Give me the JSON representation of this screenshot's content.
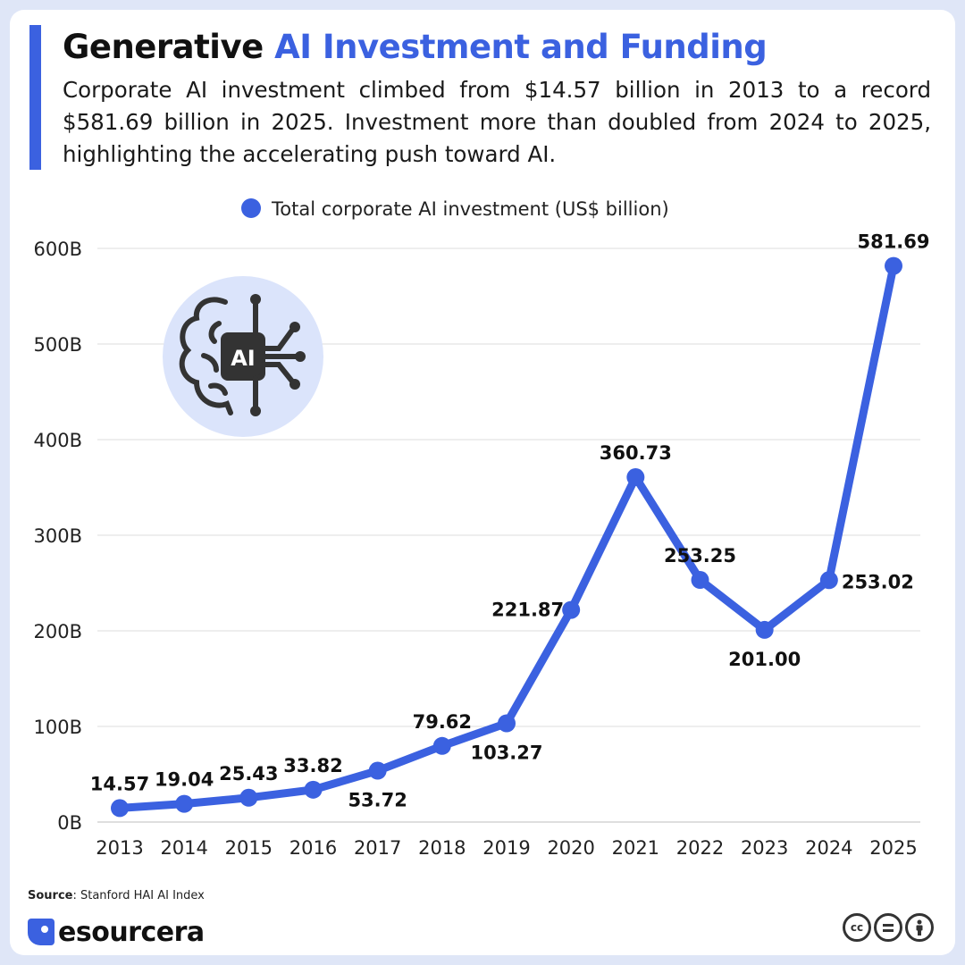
{
  "header": {
    "title_part1": "Generative",
    "title_part2": "AI Investment and Funding",
    "subtitle": "Corporate AI investment climbed from $14.57 billion in 2013 to a record $581.69 billion in 2025. Investment more than doubled from 2024 to 2025, highlighting the accelerating push toward AI."
  },
  "colors": {
    "accent": "#3b61e0",
    "background": "#dfe6f7",
    "icon_circle": "#dbe4fb"
  },
  "chart_data": {
    "type": "line",
    "x": [
      "2013",
      "2014",
      "2015",
      "2016",
      "2017",
      "2018",
      "2019",
      "2020",
      "2021",
      "2022",
      "2023",
      "2024",
      "2025"
    ],
    "series": [
      {
        "name": "Total corporate AI investment (US$ billion)",
        "values": [
          14.57,
          19.04,
          25.43,
          33.82,
          53.72,
          79.62,
          103.27,
          221.87,
          360.73,
          253.25,
          201.0,
          253.02,
          581.69
        ],
        "labels": [
          "14.57",
          "19.04",
          "25.43",
          "33.82",
          "53.72",
          "79.62",
          "103.27",
          "221.87",
          "360.73",
          "253.25",
          "201.00",
          "253.02",
          "581.69"
        ],
        "color": "#3b61e0"
      }
    ],
    "y_ticks": [
      0,
      100,
      200,
      300,
      400,
      500,
      600
    ],
    "y_tick_labels": [
      "0B",
      "100B",
      "200B",
      "300B",
      "400B",
      "500B",
      "600B"
    ],
    "ylim": [
      0,
      600
    ],
    "grid": true,
    "legend": "top-center",
    "label_placement": [
      "above",
      "above",
      "above",
      "above",
      "below",
      "above",
      "below",
      "left",
      "above",
      "above",
      "below",
      "right",
      "above"
    ]
  },
  "illustration": {
    "icon": "brain-ai-icon",
    "badge_text": "AI"
  },
  "footer": {
    "source_label": "Source",
    "source_text": ": Stanford HAI AI Index",
    "brand": "esourcera",
    "license_icons": [
      "cc-icon",
      "equals-icon",
      "person-icon"
    ],
    "cc_text": "cc"
  }
}
